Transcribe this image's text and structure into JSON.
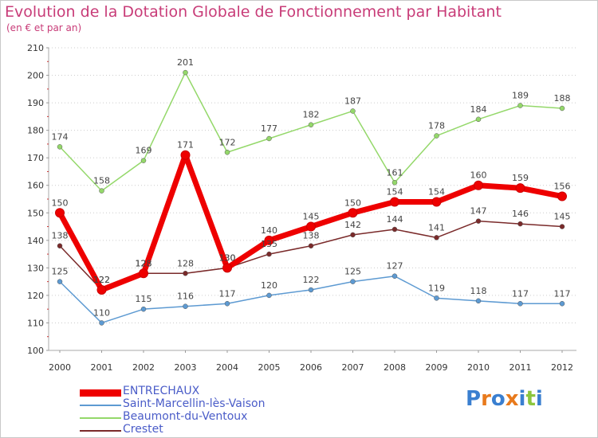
{
  "title": "Evolution de la Dotation Globale de Fonctionnement par Habitant",
  "subtitle": "(en € et par an)",
  "logo_text": "Proxiti",
  "chart_data": {
    "type": "line",
    "title": "Evolution de la Dotation Globale de Fonctionnement par Habitant",
    "subtitle": "(en € et par an)",
    "xlabel": "",
    "ylabel": "",
    "ylim": [
      100,
      210
    ],
    "yticks": [
      100,
      110,
      120,
      130,
      140,
      150,
      160,
      170,
      180,
      190,
      200,
      210
    ],
    "x": [
      "2000",
      "2001",
      "2002",
      "2003",
      "2004",
      "2005",
      "2006",
      "2007",
      "2008",
      "2009",
      "2010",
      "2011",
      "2012"
    ],
    "grid": "horizontal",
    "legend_position": "bottom-left",
    "series": [
      {
        "name": "ENTRECHAUX",
        "color": "#ee0000",
        "values": [
          150,
          122,
          128,
          171,
          130,
          140,
          145,
          150,
          154,
          154,
          160,
          159,
          156
        ]
      },
      {
        "name": "Saint-Marcellin-lès-Vaison",
        "color": "#5d9ad2",
        "values": [
          125,
          110,
          115,
          116,
          117,
          120,
          122,
          125,
          127,
          119,
          118,
          117,
          117
        ]
      },
      {
        "name": "Beaumont-du-Ventoux",
        "color": "#94d86a",
        "values": [
          174,
          158,
          169,
          201,
          172,
          177,
          182,
          187,
          161,
          178,
          184,
          189,
          188
        ]
      },
      {
        "name": "Crestet",
        "color": "#7a2a2a",
        "values": [
          138,
          122,
          128,
          128,
          130,
          135,
          138,
          142,
          144,
          141,
          147,
          146,
          145
        ]
      }
    ]
  }
}
